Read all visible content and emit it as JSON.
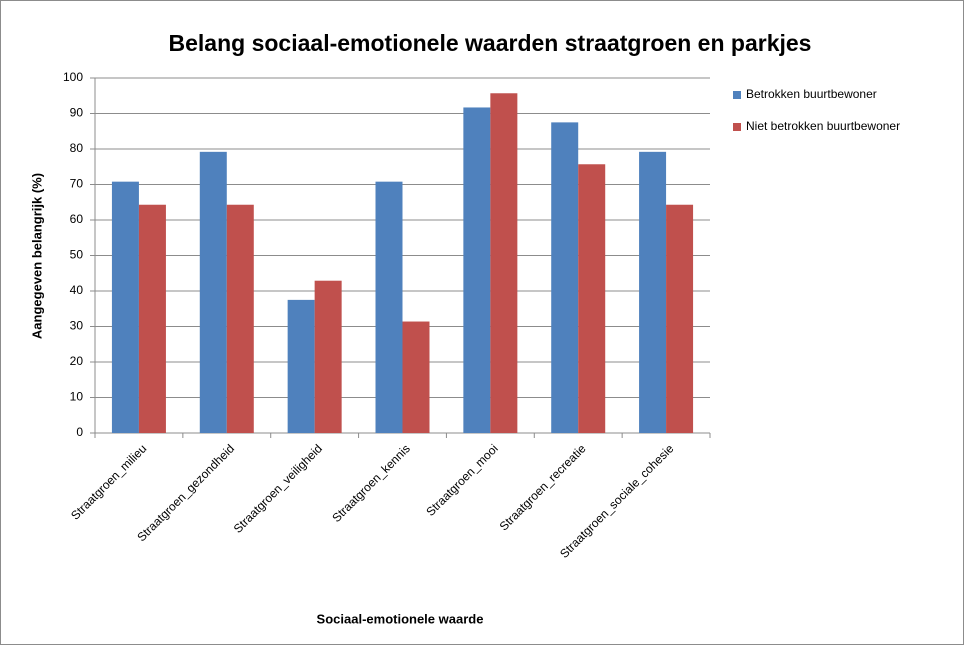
{
  "chart_data": {
    "type": "bar",
    "title": "Belang sociaal-emotionele waarden straatgroen en parkjes",
    "x_label": "Sociaal-emotionele waarde",
    "y_label": "Aangegeven belangrijk (%)",
    "categories": [
      "Straatgroen_milieu",
      "Straatgroen_gezondheid",
      "Straatgroen_veiligheid",
      "Straatgroen_kennis",
      "Straatgroen_mooi",
      "Straatgroen_recreatie",
      "Straatgroen_sociale_cohesie"
    ],
    "series": [
      {
        "name": "Betrokken buurtbewoner",
        "color": "#4f81bd",
        "values": [
          70.8,
          79.2,
          37.5,
          70.8,
          91.7,
          87.5,
          79.2
        ]
      },
      {
        "name": "Niet betrokken buurtbewoner",
        "color": "#c0504d",
        "values": [
          64.3,
          64.3,
          42.9,
          31.4,
          95.7,
          75.7,
          64.3
        ]
      }
    ],
    "ylim": [
      0,
      100
    ],
    "yticks": [
      0,
      10,
      20,
      30,
      40,
      50,
      60,
      70,
      80,
      90,
      100
    ],
    "grid": true,
    "legend": "right"
  }
}
